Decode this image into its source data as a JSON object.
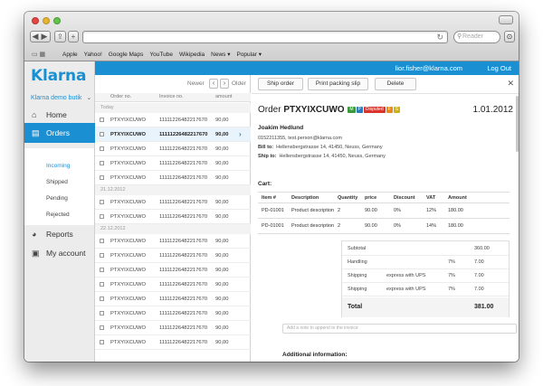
{
  "browser": {
    "search_placeholder": "Reader",
    "bookmarks": [
      "Apple",
      "Yahoo!",
      "Google Maps",
      "YouTube",
      "Wikipedia",
      "News ▾",
      "Popular ▾"
    ]
  },
  "header": {
    "user_email": "lior.fisher@klarna.com",
    "logout_label": "Log Out",
    "brand_color": "#1a90d3"
  },
  "sidebar": {
    "logo": "Klarna",
    "store_name": "Klarna demo butik",
    "nav": [
      {
        "label": "Home",
        "icon": "home-icon"
      },
      {
        "label": "Orders",
        "icon": "clipboard-icon"
      },
      {
        "label": "Reports",
        "icon": "pie-chart-icon"
      },
      {
        "label": "My account",
        "icon": "briefcase-icon"
      }
    ],
    "sub": [
      "Incoming",
      "Shipped",
      "Pending",
      "Rejected"
    ]
  },
  "list": {
    "newer_label": "Newer",
    "older_label": "Older",
    "columns": [
      "Order no.",
      "Invoice no.",
      "amount"
    ],
    "groups": [
      "Today",
      "21.12.2012",
      "22.12.2012"
    ],
    "rows": [
      {
        "order": "PTXYIXCUWO",
        "invoice": "11111226482217670",
        "amount": "90,00"
      },
      {
        "order": "PTXYIXCUWO",
        "invoice": "11111226482217670",
        "amount": "90,00"
      },
      {
        "order": "PTXYIXCUWO",
        "invoice": "11111226482217670",
        "amount": "90,00"
      },
      {
        "order": "PTXYIXCUWO",
        "invoice": "11111226482217670",
        "amount": "90,00"
      },
      {
        "order": "PTXYIXCUWO",
        "invoice": "11111226482217670",
        "amount": "90,00"
      },
      {
        "order": "PTXYIXCUWO",
        "invoice": "11111226482217670",
        "amount": "90,00"
      },
      {
        "order": "PTXYIXCUWO",
        "invoice": "11111226482217670",
        "amount": "90,00"
      },
      {
        "order": "PTXYIXCUWO",
        "invoice": "11111226482217670",
        "amount": "90,00"
      },
      {
        "order": "PTXYIXCUWO",
        "invoice": "11111226482217670",
        "amount": "90,00"
      },
      {
        "order": "PTXYIXCUWO",
        "invoice": "11111226482217670",
        "amount": "90,00"
      },
      {
        "order": "PTXYIXCUWO",
        "invoice": "11111226482217670",
        "amount": "90,00"
      },
      {
        "order": "PTXYIXCUWO",
        "invoice": "11111226482217670",
        "amount": "90,00"
      },
      {
        "order": "PTXYIXCUWO",
        "invoice": "11111226482217670",
        "amount": "90,00"
      },
      {
        "order": "PTXYIXCUWO",
        "invoice": "11111226482217670",
        "amount": "90,00"
      },
      {
        "order": "PTXYIXCUWO",
        "invoice": "11111226482217670",
        "amount": "90,00"
      }
    ]
  },
  "detail": {
    "actions": [
      "Ship order",
      "Print packing slip",
      "Delete"
    ],
    "order_prefix": "Order",
    "order_no": "PTXYIXCUWO",
    "badges": [
      {
        "text": "M",
        "color": "#3a9a3a"
      },
      {
        "text": "P",
        "color": "#2a7ac0"
      },
      {
        "text": "Disputed",
        "color": "#d9342b"
      },
      {
        "text": "F",
        "color": "#e8891a"
      },
      {
        "text": "S",
        "color": "#c9b21a"
      }
    ],
    "date": "1.01.2012",
    "customer": {
      "name": "Joakim Hedlund",
      "contact": "0152211355, test.person@klarna.com",
      "bill_label": "Bill to:",
      "bill_to": "Hellensbergstrasse 14, 41450, Neuss, Germany",
      "ship_label": "Ship to:",
      "ship_to": "Hellensbergstrasse 14, 41450, Neuss, Germany"
    },
    "cart_label": "Cart:",
    "cart_columns": [
      "Item #",
      "Description",
      "Quantity",
      "price",
      "Discount",
      "VAT",
      "Amount"
    ],
    "cart_rows": [
      [
        "PD-01001",
        "Product description",
        "2",
        "90.00",
        "0%",
        "12%",
        "180.00"
      ],
      [
        "PD-01001",
        "Product description",
        "2",
        "90.00",
        "0%",
        "14%",
        "180.00"
      ]
    ],
    "summary": [
      {
        "label": "Subtotal",
        "note": "",
        "pct": "",
        "value": "360.00"
      },
      {
        "label": "Handling",
        "note": "",
        "pct": "7%",
        "value": "7.00"
      },
      {
        "label": "Shipping",
        "note": "express with UPS",
        "pct": "7%",
        "value": "7.00"
      },
      {
        "label": "Shipping",
        "note": "express with UPS",
        "pct": "7%",
        "value": "7.00"
      }
    ],
    "total_label": "Total",
    "total_value": "381.00",
    "note_placeholder": "Add a note to append to the invoice",
    "additional_info": "Additional information:"
  }
}
